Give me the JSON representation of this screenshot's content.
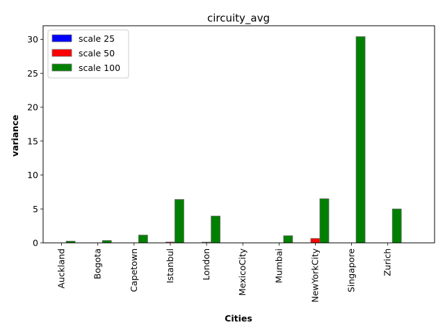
{
  "chart_data": {
    "type": "bar",
    "title": "circuity_avg",
    "xlabel": "Cities",
    "ylabel": "variance",
    "categories": [
      "Auckland",
      "Bogota",
      "Capetown",
      "Istanbul",
      "London",
      "MexicoCity",
      "Mumbai",
      "NewYorkCity",
      "Singapore",
      "Zurich"
    ],
    "series": [
      {
        "name": "scale 25",
        "color": "#0000ff",
        "values": [
          0.0,
          0.0,
          0.0,
          0.0,
          0.0,
          0.0,
          0.0,
          0.0,
          0.0,
          0.0
        ]
      },
      {
        "name": "scale 50",
        "color": "#ff0000",
        "values": [
          0.0,
          0.0,
          0.0,
          0.12,
          0.1,
          0.0,
          0.0,
          0.65,
          0.0,
          0.0
        ]
      },
      {
        "name": "scale 100",
        "color": "#008000",
        "values": [
          0.25,
          0.35,
          1.15,
          6.4,
          3.95,
          0.0,
          1.05,
          6.5,
          30.4,
          5.0
        ]
      }
    ],
    "ylim": [
      0,
      32
    ],
    "yticks": [
      0,
      5,
      10,
      15,
      20,
      25,
      30
    ],
    "grid": false,
    "legend_position": "upper-left",
    "bar_edge_color": "#6b6b6b"
  }
}
